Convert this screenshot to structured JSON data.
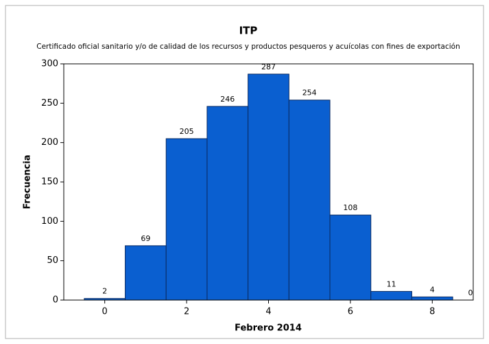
{
  "chart_data": {
    "type": "histogram",
    "title": "ITP",
    "subtitle": "Certificado oficial sanitario y/o de calidad de los recursos y productos pesqueros y acuícolas con fines de exportación",
    "x_label": "Febrero 2014",
    "y_label": "Frecuencia",
    "bins": [
      -0.5,
      0.5,
      1.5,
      2.5,
      3.5,
      4.5,
      5.5,
      6.5,
      7.5,
      8.5,
      9.5
    ],
    "values": [
      2,
      69,
      205,
      246,
      287,
      254,
      108,
      11,
      4,
      0
    ],
    "color": "#0a5fd0",
    "xlim": [
      -1,
      9
    ],
    "xticks": [
      0,
      2,
      4,
      6,
      8
    ],
    "ylim": [
      0,
      300
    ],
    "yticks": [
      0,
      50,
      100,
      150,
      200,
      250,
      300
    ]
  }
}
